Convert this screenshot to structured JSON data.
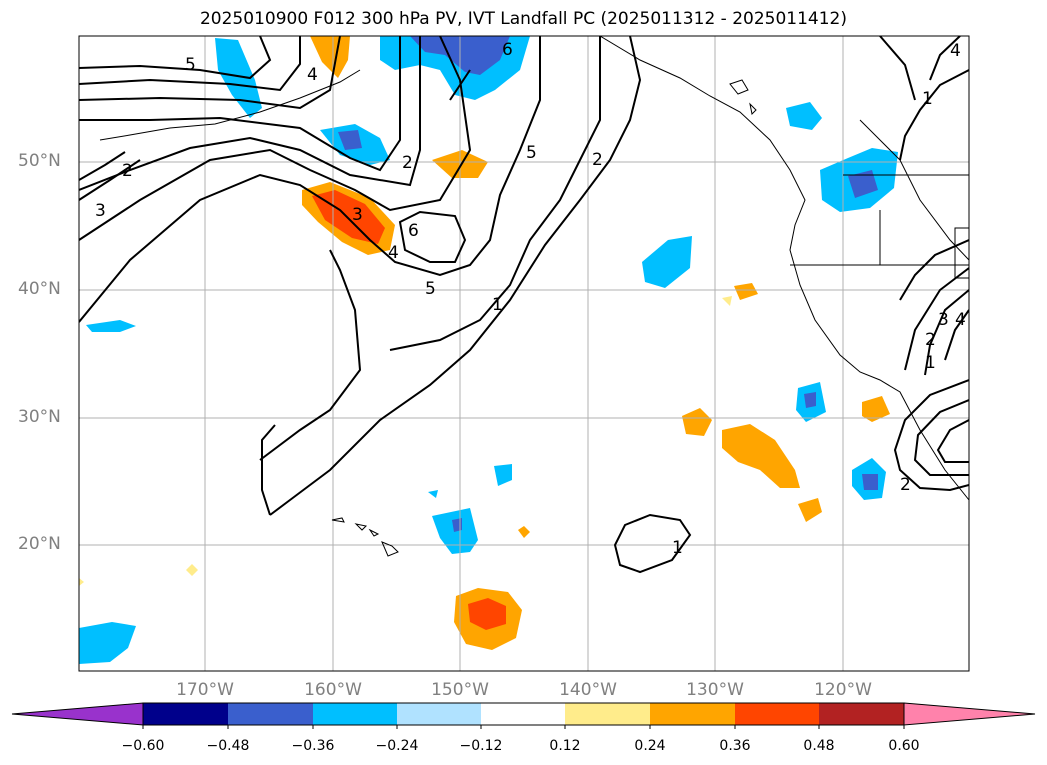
{
  "title": "2025010900 F012 300 hPa PV, IVT Landfall PC (2025011312 - 2025011412)",
  "map": {
    "lat_labels": [
      "50°N",
      "40°N",
      "30°N",
      "20°N"
    ],
    "lon_labels": [
      "170°W",
      "160°W",
      "150°W",
      "140°W",
      "130°W",
      "120°W"
    ],
    "contour_labels": [
      "5",
      "4",
      "2",
      "3",
      "3",
      "2",
      "6",
      "5",
      "6",
      "4",
      "5",
      "2",
      "1",
      "1",
      "1",
      "1",
      "2",
      "3",
      "2",
      "4",
      "4"
    ]
  },
  "colorbar": {
    "ticks": [
      "−0.60",
      "−0.48",
      "−0.36",
      "−0.24",
      "−0.12",
      "0.12",
      "0.24",
      "0.36",
      "0.48",
      "0.60"
    ],
    "colors": {
      "below": "#9932cc",
      "n060": "#00008b",
      "n048": "#3a5fcd",
      "n036": "#00bfff",
      "n024": "#b0e2ff",
      "zero": "#ffffff",
      "p012": "#ffec8b",
      "p024": "#ffa500",
      "p036": "#ff4500",
      "p048": "#b22222",
      "above": "#ff82ab"
    }
  }
}
